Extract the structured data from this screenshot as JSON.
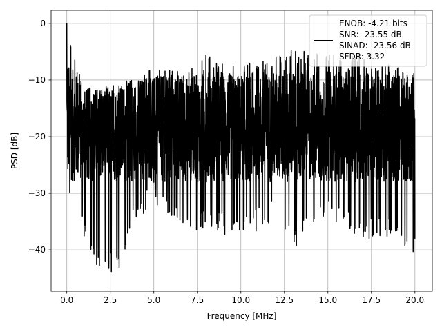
{
  "chart_data": {
    "type": "line",
    "title": "",
    "xlabel": "Frequency [MHz]",
    "ylabel": "PSD [dB]",
    "xlim": [
      -0.9,
      21.0
    ],
    "ylim": [
      -47.3,
      2.3
    ],
    "xticks": [
      0.0,
      2.5,
      5.0,
      7.5,
      10.0,
      12.5,
      15.0,
      17.5,
      20.0
    ],
    "xtick_labels": [
      "0.0",
      "2.5",
      "5.0",
      "7.5",
      "10.0",
      "12.5",
      "15.0",
      "17.5",
      "20.0"
    ],
    "yticks": [
      0,
      -10,
      -20,
      -30,
      -40
    ],
    "ytick_labels": [
      "0",
      "−10",
      "−20",
      "−30",
      "−40"
    ],
    "grid": true,
    "legend_position": "top-right",
    "legend_lines": [
      "ENOB: -4.21 bits",
      "SNR: -23.55 dB",
      "SINAD: -23.56 dB",
      "SFDR: 3.32"
    ],
    "series": [
      {
        "color": "#000000",
        "x_range": [
          0.0,
          20.0
        ],
        "peak": {
          "x": 0.0,
          "y": 0.0
        },
        "envelope_x": [
          0.0,
          1.0,
          2.0,
          3.0,
          4.0,
          5.0,
          6.0,
          7.0,
          8.0,
          9.0,
          10.0,
          11.0,
          12.0,
          13.0,
          14.0,
          15.0,
          16.0,
          17.0,
          18.0,
          19.0,
          20.0
        ],
        "envelope_upper": [
          -1.0,
          -11.5,
          -11.0,
          -11.0,
          -9.0,
          -8.0,
          -8.0,
          -8.5,
          -5.5,
          -6.5,
          -7.0,
          -6.5,
          -5.5,
          -4.5,
          -5.0,
          -5.5,
          -6.0,
          -5.5,
          -6.5,
          -7.0,
          -8.5
        ],
        "envelope_lower": [
          -31.0,
          -38.5,
          -45.0,
          -43.5,
          -35.0,
          -32.0,
          -34.5,
          -37.0,
          -36.5,
          -37.5,
          -38.5,
          -36.5,
          -34.5,
          -40.5,
          -36.5,
          -35.0,
          -36.5,
          -39.0,
          -38.0,
          -39.0,
          -41.0
        ],
        "typical_band": [
          -28.0,
          -10.0
        ]
      }
    ]
  }
}
